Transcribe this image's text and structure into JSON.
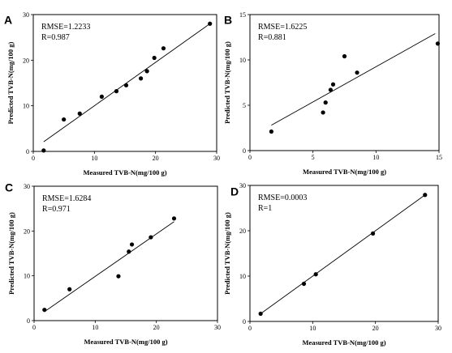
{
  "chart_data": [
    {
      "type": "scatter",
      "panel": "A",
      "stats": [
        "RMSE=1.2233",
        "R=0.987"
      ],
      "xlabel": "Measured TVB-N(mg/100 g)",
      "ylabel": "Predicted TVB-N(mg/100 g)",
      "xlim": [
        0,
        30
      ],
      "ylim": [
        0,
        30
      ],
      "xticks": [
        0,
        10,
        20,
        30
      ],
      "yticks": [
        0,
        10,
        20,
        30
      ],
      "points": [
        {
          "x": 1.7,
          "y": 0.2
        },
        {
          "x": 5.0,
          "y": 7.0
        },
        {
          "x": 7.6,
          "y": 8.3
        },
        {
          "x": 11.2,
          "y": 12.0
        },
        {
          "x": 13.6,
          "y": 13.2
        },
        {
          "x": 15.2,
          "y": 14.5
        },
        {
          "x": 17.6,
          "y": 16.0
        },
        {
          "x": 18.6,
          "y": 17.6
        },
        {
          "x": 19.8,
          "y": 20.5
        },
        {
          "x": 21.3,
          "y": 22.6
        },
        {
          "x": 28.9,
          "y": 28.0
        }
      ],
      "fit_line": [
        [
          1.7,
          2.1
        ],
        [
          28.9,
          28.0
        ]
      ]
    },
    {
      "type": "scatter",
      "panel": "B",
      "stats": [
        "RMSE=1.6225",
        "R=0.881"
      ],
      "xlabel": "Measured TVB-N(mg/100 g)",
      "ylabel": "Predicted TVB-N(mg/100 g)",
      "xlim": [
        0,
        15
      ],
      "ylim": [
        0,
        15
      ],
      "xticks": [
        0,
        5,
        10,
        15
      ],
      "yticks": [
        0,
        5,
        10,
        15
      ],
      "points": [
        {
          "x": 1.7,
          "y": 2.1
        },
        {
          "x": 5.8,
          "y": 4.2
        },
        {
          "x": 6.0,
          "y": 5.3
        },
        {
          "x": 6.4,
          "y": 6.7
        },
        {
          "x": 6.6,
          "y": 7.3
        },
        {
          "x": 7.5,
          "y": 10.4
        },
        {
          "x": 8.5,
          "y": 8.6
        },
        {
          "x": 14.9,
          "y": 11.8
        }
      ],
      "fit_line": [
        [
          1.7,
          2.8
        ],
        [
          14.7,
          12.9
        ]
      ]
    },
    {
      "type": "scatter",
      "panel": "C",
      "stats": [
        "RMSE=1.6284",
        "R=0.971"
      ],
      "xlabel": "Measured TVB-N(mg/100 g)",
      "ylabel": "Predicted TVB-N(mg/100 g)",
      "xlim": [
        0,
        30
      ],
      "ylim": [
        0,
        30
      ],
      "xticks": [
        0,
        10,
        20,
        30
      ],
      "yticks": [
        0,
        10,
        20,
        30
      ],
      "points": [
        {
          "x": 1.7,
          "y": 2.4
        },
        {
          "x": 5.8,
          "y": 7.0
        },
        {
          "x": 13.8,
          "y": 9.9
        },
        {
          "x": 15.5,
          "y": 15.4
        },
        {
          "x": 16.0,
          "y": 17.0
        },
        {
          "x": 19.1,
          "y": 18.6
        },
        {
          "x": 22.9,
          "y": 22.8
        }
      ],
      "fit_line": [
        [
          1.7,
          2.0
        ],
        [
          22.9,
          22.1
        ]
      ]
    },
    {
      "type": "scatter",
      "panel": "D",
      "stats": [
        "RMSE=0.0003",
        "R=1"
      ],
      "xlabel": "Measured TVB-N(mg/100 g)",
      "ylabel": "Predicted TVB-N(mg/100 g)",
      "xlim": [
        0,
        30
      ],
      "ylim": [
        0,
        30
      ],
      "xticks": [
        0,
        10,
        20,
        30
      ],
      "yticks": [
        0,
        10,
        20,
        30
      ],
      "points": [
        {
          "x": 1.7,
          "y": 1.7
        },
        {
          "x": 8.6,
          "y": 8.3
        },
        {
          "x": 10.5,
          "y": 10.4
        },
        {
          "x": 19.6,
          "y": 19.4
        },
        {
          "x": 27.9,
          "y": 27.9
        }
      ],
      "fit_line": [
        [
          1.7,
          1.7
        ],
        [
          27.9,
          27.9
        ]
      ]
    }
  ]
}
